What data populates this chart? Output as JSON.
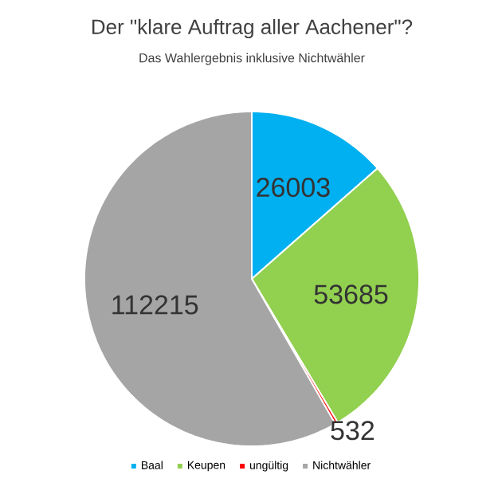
{
  "chart_data": {
    "type": "pie",
    "title": "Der \"klare Auftrag aller Aachener\"?",
    "subtitle": "Das Wahlergebnis inklusive Nichtwähler",
    "categories": [
      "Baal",
      "Keupen",
      "ungültig",
      "Nichtwähler"
    ],
    "values": [
      26003,
      53685,
      532,
      112215
    ],
    "colors": [
      "#00b0f0",
      "#92d050",
      "#ff0000",
      "#a5a5a5"
    ],
    "data_labels": true,
    "legend": "bottom"
  }
}
